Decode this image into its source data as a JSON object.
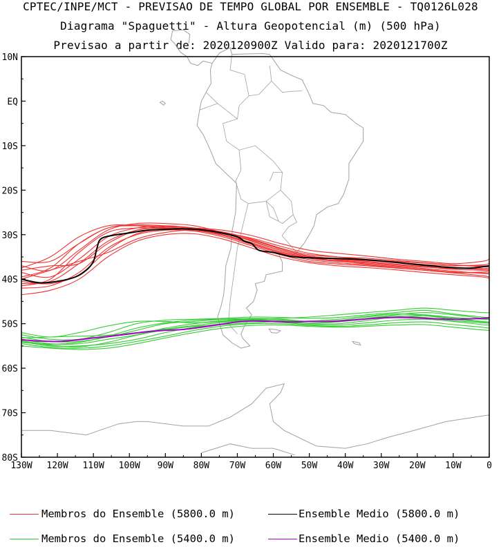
{
  "title": {
    "line1": "CPTEC/INPE/MCT - PREVISAO DE TEMPO GLOBAL POR ENSEMBLE - TQ0126L028",
    "line2": "Diagrama \"Spaguetti\" - Altura Geopotencial (m) (500 hPa)",
    "line3": "Previsao a partir de: 2020120900Z  Valido para: 2020121700Z"
  },
  "chart_data": {
    "type": "line",
    "xlim": [
      -130,
      0
    ],
    "ylim": [
      -80,
      10
    ],
    "x_ticks": [
      "130W",
      "120W",
      "110W",
      "100W",
      "90W",
      "80W",
      "70W",
      "60W",
      "50W",
      "40W",
      "30W",
      "20W",
      "10W",
      "0"
    ],
    "y_ticks": [
      "10N",
      "EQ",
      "10S",
      "20S",
      "30S",
      "40S",
      "50S",
      "60S",
      "70S",
      "80S"
    ],
    "series": [
      {
        "name": "Ensemble Medio (5800.0 m)",
        "color": "#000000",
        "lon": [
          -130,
          -125,
          -120,
          -115,
          -112,
          -110,
          -109,
          -108,
          -105,
          -100,
          -95,
          -90,
          -85,
          -80,
          -75,
          -70,
          -68,
          -66,
          -64,
          -60,
          -55,
          -50,
          -45,
          -40,
          -35,
          -30,
          -25,
          -20,
          -15,
          -10,
          -5,
          0
        ],
        "lat": [
          -40,
          -40.8,
          -40.5,
          -39.5,
          -38,
          -36,
          -33,
          -31,
          -30.2,
          -29.6,
          -29,
          -28.8,
          -28.7,
          -28.9,
          -29.5,
          -30.5,
          -31.5,
          -32,
          -33.5,
          -34,
          -34.9,
          -35.2,
          -35.3,
          -35.4,
          -35.6,
          -35.9,
          -36.3,
          -36.7,
          -37.1,
          -37.4,
          -37.5,
          -37.0
        ]
      },
      {
        "name": "Ensemble Medio (5400.0 m)",
        "color": "#aa00cc",
        "lon": [
          -130,
          -125,
          -120,
          -115,
          -110,
          -105,
          -100,
          -95,
          -90,
          -85,
          -80,
          -75,
          -70,
          -65,
          -60,
          -55,
          -50,
          -45,
          -40,
          -35,
          -30,
          -25,
          -20,
          -15,
          -10,
          -5,
          0
        ],
        "lat": [
          -53.6,
          -53.9,
          -54,
          -53.7,
          -53.2,
          -52.8,
          -52.3,
          -51.8,
          -51.5,
          -51.3,
          -50.8,
          -50.2,
          -49.6,
          -49.4,
          -49.5,
          -49.6,
          -49.5,
          -49.5,
          -49.3,
          -49.0,
          -48.7,
          -48.6,
          -48.7,
          -48.9,
          -49.0,
          -48.9,
          -48.7
        ]
      }
    ],
    "ensemble_5800": {
      "name": "Membros do Ensemble (5800.0 m)",
      "color": "#ee3333",
      "lon": [
        -130,
        -122,
        -114,
        -106,
        -98,
        -90,
        -82,
        -74,
        -66,
        -58,
        -50,
        -42,
        -34,
        -26,
        -18,
        -10,
        -2,
        0
      ],
      "members": [
        [
          -36.0,
          -36.0,
          -32.0,
          -28.5,
          -28.0,
          -28.2,
          -28.5,
          -29.0,
          -30.2,
          -32.0,
          -33.5,
          -34.2,
          -34.8,
          -35.5,
          -36.0,
          -36.5,
          -36.0,
          -35.5
        ],
        [
          -37.0,
          -38.0,
          -33.5,
          -29.0,
          -27.5,
          -27.5,
          -28.0,
          -29.5,
          -31.0,
          -33.0,
          -34.5,
          -35.0,
          -35.3,
          -35.8,
          -36.3,
          -36.8,
          -37.0,
          -37.0
        ],
        [
          -38.5,
          -39.5,
          -35.5,
          -30.5,
          -28.5,
          -28.0,
          -28.5,
          -29.5,
          -31.5,
          -33.5,
          -35.0,
          -35.5,
          -35.8,
          -36.3,
          -37.0,
          -37.5,
          -37.8,
          -37.8
        ],
        [
          -41.0,
          -40.5,
          -36.5,
          -31.5,
          -29.0,
          -28.5,
          -28.8,
          -30.0,
          -32.0,
          -34.0,
          -35.3,
          -36.0,
          -36.4,
          -37.0,
          -37.6,
          -38.2,
          -38.7,
          -38.8
        ],
        [
          -42.0,
          -41.5,
          -38.5,
          -33.0,
          -30.0,
          -29.0,
          -29.2,
          -30.5,
          -32.5,
          -34.5,
          -36.0,
          -36.6,
          -37.0,
          -37.5,
          -38.0,
          -38.6,
          -39.2,
          -39.5
        ],
        [
          -43.5,
          -42.5,
          -40.0,
          -35.0,
          -31.5,
          -30.0,
          -29.8,
          -31.0,
          -33.0,
          -35.0,
          -36.3,
          -37.0,
          -37.4,
          -37.9,
          -38.5,
          -39.0,
          -39.5,
          -39.8
        ],
        [
          -40.0,
          -38.0,
          -36.0,
          -34.0,
          -31.0,
          -29.5,
          -29.0,
          -29.8,
          -31.2,
          -33.2,
          -34.8,
          -35.6,
          -36.0,
          -36.6,
          -37.2,
          -37.8,
          -38.0,
          -38.0
        ],
        [
          -37.5,
          -35.0,
          -30.5,
          -28.0,
          -28.0,
          -28.5,
          -29.0,
          -29.6,
          -30.8,
          -32.6,
          -34.2,
          -35.0,
          -35.6,
          -36.2,
          -36.7,
          -37.0,
          -36.8,
          -36.5
        ],
        [
          -39.5,
          -37.5,
          -32.0,
          -28.5,
          -27.8,
          -28.0,
          -28.6,
          -29.4,
          -31.0,
          -33.2,
          -34.8,
          -35.4,
          -35.7,
          -36.0,
          -36.4,
          -36.8,
          -37.2,
          -37.3
        ],
        [
          -41.5,
          -40.0,
          -34.0,
          -29.5,
          -28.5,
          -28.6,
          -29.0,
          -30.0,
          -31.8,
          -33.8,
          -35.2,
          -35.8,
          -36.2,
          -36.8,
          -37.3,
          -37.6,
          -37.6,
          -37.5
        ],
        [
          -38.0,
          -37.0,
          -36.5,
          -32.0,
          -29.0,
          -28.3,
          -28.6,
          -29.6,
          -31.4,
          -33.5,
          -35.0,
          -35.9,
          -36.6,
          -37.2,
          -37.8,
          -38.4,
          -38.6,
          -38.5
        ],
        [
          -40.5,
          -41.0,
          -39.0,
          -33.5,
          -29.8,
          -28.8,
          -29.0,
          -30.2,
          -32.2,
          -34.2,
          -35.6,
          -36.3,
          -36.8,
          -37.4,
          -38.0,
          -38.5,
          -38.4,
          -38.2
        ]
      ]
    },
    "ensemble_5400": {
      "name": "Membros do Ensemble (5400.0 m)",
      "color": "#33cc33",
      "lon": [
        -130,
        -122,
        -114,
        -106,
        -98,
        -90,
        -82,
        -74,
        -66,
        -58,
        -50,
        -42,
        -34,
        -26,
        -18,
        -10,
        -2,
        0
      ],
      "members": [
        [
          -52.0,
          -53.0,
          -52.0,
          -50.5,
          -49.5,
          -49.5,
          -49.8,
          -49.5,
          -49.0,
          -48.8,
          -48.5,
          -48.0,
          -47.5,
          -47.0,
          -46.5,
          -47.0,
          -47.5,
          -47.5
        ],
        [
          -52.5,
          -53.5,
          -53.5,
          -52.0,
          -50.0,
          -49.2,
          -49.0,
          -48.8,
          -48.5,
          -48.6,
          -48.8,
          -48.6,
          -48.0,
          -47.5,
          -47.0,
          -47.8,
          -48.5,
          -48.6
        ],
        [
          -53.0,
          -54.0,
          -54.0,
          -53.0,
          -51.5,
          -50.0,
          -49.5,
          -49.0,
          -48.8,
          -49.0,
          -49.5,
          -49.5,
          -48.8,
          -48.0,
          -47.5,
          -48.0,
          -48.8,
          -49.0
        ],
        [
          -53.5,
          -54.5,
          -54.5,
          -53.5,
          -52.5,
          -51.0,
          -50.0,
          -49.3,
          -49.0,
          -49.3,
          -50.0,
          -50.0,
          -49.3,
          -48.5,
          -48.2,
          -48.8,
          -49.5,
          -49.6
        ],
        [
          -54.0,
          -55.0,
          -55.0,
          -54.5,
          -53.5,
          -52.0,
          -50.8,
          -50.0,
          -49.5,
          -49.7,
          -50.2,
          -50.3,
          -49.8,
          -49.2,
          -49.0,
          -49.5,
          -50.2,
          -50.3
        ],
        [
          -54.5,
          -55.3,
          -55.5,
          -55.0,
          -54.0,
          -52.8,
          -51.5,
          -50.5,
          -50.0,
          -50.0,
          -50.4,
          -50.6,
          -50.3,
          -49.8,
          -49.6,
          -50.2,
          -50.8,
          -51.0
        ],
        [
          -55.0,
          -55.5,
          -55.8,
          -55.5,
          -54.5,
          -53.2,
          -52.0,
          -51.0,
          -50.4,
          -50.3,
          -50.6,
          -50.8,
          -50.6,
          -50.3,
          -50.2,
          -50.8,
          -51.4,
          -51.5
        ],
        [
          -53.2,
          -53.0,
          -52.8,
          -52.6,
          -52.0,
          -51.2,
          -50.4,
          -49.7,
          -49.2,
          -49.2,
          -49.5,
          -49.3,
          -48.5,
          -47.8,
          -48.0,
          -48.6,
          -49.0,
          -49.0
        ],
        [
          -54.2,
          -54.6,
          -54.2,
          -52.8,
          -51.0,
          -49.8,
          -49.2,
          -49.0,
          -49.1,
          -49.6,
          -49.9,
          -49.6,
          -48.9,
          -48.3,
          -48.6,
          -49.3,
          -49.8,
          -49.9
        ],
        [
          -53.8,
          -54.8,
          -55.2,
          -54.2,
          -52.6,
          -51.4,
          -50.6,
          -50.2,
          -49.8,
          -49.5,
          -49.4,
          -49.0,
          -48.3,
          -47.8,
          -48.2,
          -49.0,
          -49.6,
          -49.7
        ]
      ]
    },
    "land_color": "#a0a0a0"
  },
  "legend": {
    "items": [
      {
        "label": "Membros do Ensemble (5800.0 m)",
        "color": "#ee3333"
      },
      {
        "label": "Ensemble Medio (5800.0 m)",
        "color": "#000000"
      },
      {
        "label": "Membros do Ensemble (5400.0 m)",
        "color": "#33cc33"
      },
      {
        "label": "Ensemble Medio (5400.0 m)",
        "color": "#aa00cc"
      }
    ]
  }
}
